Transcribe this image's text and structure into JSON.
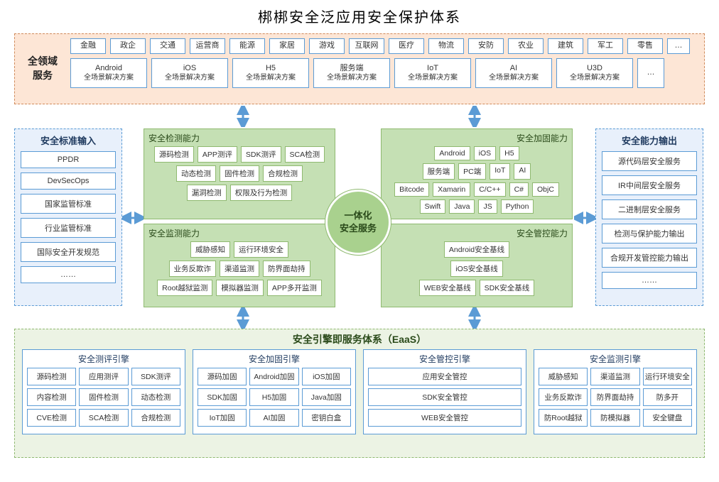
{
  "title": "梆梆安全泛应用安全保护体系",
  "colors": {
    "bg": "#ffffff",
    "top_bg": "#fde6d6",
    "top_border": "#d08a5a",
    "blue_border": "#5b9bd5",
    "side_bg": "#e8f0fb",
    "green_bg": "#c5e0b4",
    "green_border": "#8fb970",
    "bottom_bg": "#ecf3e4",
    "circle_bg": "#a9d18e",
    "arrow": "#5b9bd5"
  },
  "top": {
    "label": "全领域\n服务",
    "industries": [
      "金融",
      "政企",
      "交通",
      "运营商",
      "能源",
      "家居",
      "游戏",
      "互联网",
      "医疗",
      "物流",
      "安防",
      "农业",
      "建筑",
      "军工",
      "零售",
      "…"
    ],
    "platforms": [
      {
        "l1": "Android",
        "l2": "全场景解决方案"
      },
      {
        "l1": "iOS",
        "l2": "全场景解决方案"
      },
      {
        "l1": "H5",
        "l2": "全场景解决方案"
      },
      {
        "l1": "服务端",
        "l2": "全场景解决方案"
      },
      {
        "l1": "IoT",
        "l2": "全场景解决方案"
      },
      {
        "l1": "AI",
        "l2": "全场景解决方案"
      },
      {
        "l1": "U3D",
        "l2": "全场景解决方案"
      }
    ],
    "platforms_more": "…"
  },
  "left": {
    "title": "安全标准输入",
    "items": [
      "PPDR",
      "DevSecOps",
      "国家监管标准",
      "行业监管标准",
      "国际安全开发规范",
      "……"
    ]
  },
  "right": {
    "title": "安全能力输出",
    "items": [
      "源代码层安全服务",
      "IR中间层安全服务",
      "二进制层安全服务",
      "检测与保护能力输出",
      "合规开发管控能力输出",
      "……"
    ]
  },
  "center": {
    "circle": "一体化\n安全服务",
    "tl": {
      "title": "安全检测能力",
      "rows": [
        [
          "源码检测",
          "APP测评",
          "SDK测评",
          "SCA检测"
        ],
        [
          "动态检测",
          "固件检测",
          "合规检测"
        ],
        [
          "漏洞检测",
          "权限及行为检测"
        ]
      ]
    },
    "tr": {
      "title": "安全加固能力",
      "rows": [
        [
          "Android",
          "iOS",
          "H5"
        ],
        [
          "服务端",
          "PC端",
          "IoT",
          "AI"
        ],
        [
          "Bitcode",
          "Xamarin",
          "C/C++",
          "C#",
          "ObjC"
        ],
        [
          "Swift",
          "Java",
          "JS",
          "Python"
        ]
      ]
    },
    "bl": {
      "title": "安全监测能力",
      "rows": [
        [
          "威胁感知",
          "运行环境安全"
        ],
        [
          "业务反欺诈",
          "渠道监测",
          "防界面劫持"
        ],
        [
          "Root越狱监测",
          "模拟器监测",
          "APP多开监测"
        ]
      ]
    },
    "br": {
      "title": "安全管控能力",
      "rows": [
        [
          "Android安全基线"
        ],
        [
          "iOS安全基线"
        ],
        [
          "WEB安全基线",
          "SDK安全基线"
        ]
      ]
    }
  },
  "bottom": {
    "title": "安全引擎即服务体系（EaaS）",
    "cols": [
      {
        "title": "安全测评引擎",
        "rows": [
          [
            "源码检测",
            "应用测评",
            "SDK测评"
          ],
          [
            "内容检测",
            "固件检测",
            "动态检测"
          ],
          [
            "CVE检测",
            "SCA检测",
            "合规检测"
          ]
        ]
      },
      {
        "title": "安全加固引擎",
        "rows": [
          [
            "源码加固",
            "Android加固",
            "iOS加固"
          ],
          [
            "SDK加固",
            "H5加固",
            "Java加固"
          ],
          [
            "IoT加固",
            "AI加固",
            "密钥白盒"
          ]
        ]
      },
      {
        "title": "安全管控引擎",
        "rows": [
          [
            "应用安全管控"
          ],
          [
            "SDK安全管控"
          ],
          [
            "WEB安全管控"
          ]
        ]
      },
      {
        "title": "安全监测引擎",
        "rows": [
          [
            "威胁感知",
            "渠道监测",
            "运行环境安全"
          ],
          [
            "业务反欺诈",
            "防界面劫持",
            "防多开"
          ],
          [
            "防Root越狱",
            "防模拟器",
            "安全键盘"
          ]
        ]
      }
    ]
  }
}
